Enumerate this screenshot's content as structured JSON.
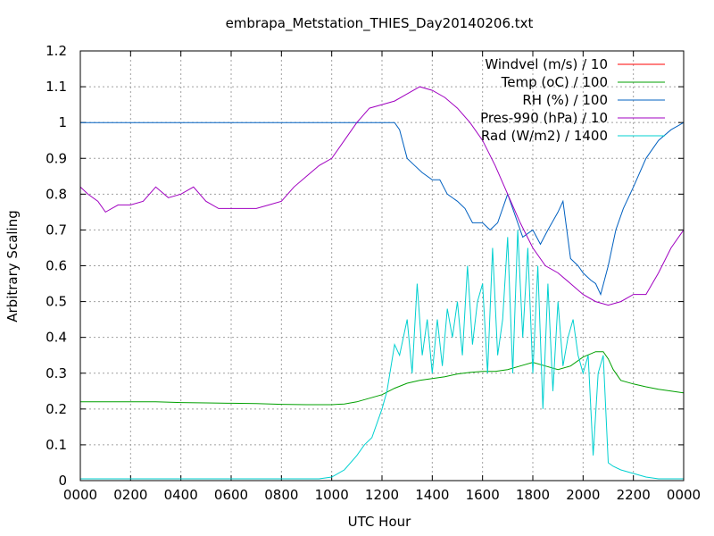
{
  "chart_data": {
    "type": "line",
    "title": "embrapa_Metstation_THIES_Day20140206.txt",
    "xlabel": "UTC Hour",
    "ylabel": "Arbitrary Scaling",
    "xlim": [
      0,
      24
    ],
    "ylim": [
      0,
      1.2
    ],
    "grid": true,
    "legend_position": "top-right",
    "x_tick_values": [
      0,
      2,
      4,
      6,
      8,
      10,
      12,
      14,
      16,
      18,
      20,
      22,
      24
    ],
    "x_tick_labels": [
      "0000",
      "0200",
      "0400",
      "0600",
      "0800",
      "1000",
      "1200",
      "1400",
      "1600",
      "1800",
      "2000",
      "2200",
      "0000"
    ],
    "y_tick_values": [
      0,
      0.1,
      0.2,
      0.3,
      0.4,
      0.5,
      0.6,
      0.7,
      0.8,
      0.9,
      1.0,
      1.1,
      1.2
    ],
    "y_tick_labels": [
      "0",
      "0.1",
      "0.2",
      "0.3",
      "0.4",
      "0.5",
      "0.6",
      "0.7",
      "0.8",
      "0.9",
      "1",
      "1.1",
      "1.2"
    ],
    "series": [
      {
        "name": "Windvel (m/s) / 10",
        "color": "#ff0000",
        "x": [],
        "values": []
      },
      {
        "name": "Temp (oC) / 100",
        "color": "#00a000",
        "x": [
          0,
          1,
          2,
          3,
          4,
          5,
          6,
          7,
          8,
          9,
          10,
          10.5,
          11,
          11.5,
          12,
          12.5,
          13,
          13.5,
          14,
          14.5,
          15,
          15.5,
          16,
          16.5,
          17,
          17.5,
          18,
          18.5,
          19,
          19.5,
          20,
          20.5,
          20.8,
          21,
          21.2,
          21.5,
          22,
          22.5,
          23,
          23.5,
          24
        ],
        "values": [
          0.22,
          0.22,
          0.22,
          0.22,
          0.218,
          0.217,
          0.216,
          0.215,
          0.213,
          0.212,
          0.212,
          0.214,
          0.22,
          0.23,
          0.24,
          0.258,
          0.272,
          0.28,
          0.285,
          0.29,
          0.298,
          0.302,
          0.305,
          0.305,
          0.31,
          0.32,
          0.33,
          0.32,
          0.31,
          0.32,
          0.345,
          0.36,
          0.36,
          0.34,
          0.31,
          0.28,
          0.27,
          0.262,
          0.255,
          0.25,
          0.245
        ]
      },
      {
        "name": "RH (%) / 100",
        "color": "#0060c0",
        "x": [
          0,
          12.5,
          12.7,
          13,
          13.3,
          13.6,
          14,
          14.3,
          14.6,
          15,
          15.3,
          15.6,
          16,
          16.3,
          16.6,
          17,
          17.3,
          17.6,
          18,
          18.3,
          18.6,
          19,
          19.2,
          19.5,
          19.8,
          20,
          20.3,
          20.5,
          20.7,
          21,
          21.3,
          21.6,
          22,
          22.5,
          23,
          23.5,
          24
        ],
        "values": [
          1.0,
          1.0,
          0.98,
          0.9,
          0.88,
          0.86,
          0.84,
          0.84,
          0.8,
          0.78,
          0.76,
          0.72,
          0.72,
          0.7,
          0.72,
          0.8,
          0.74,
          0.68,
          0.7,
          0.66,
          0.7,
          0.75,
          0.78,
          0.62,
          0.6,
          0.58,
          0.56,
          0.55,
          0.52,
          0.6,
          0.7,
          0.76,
          0.82,
          0.9,
          0.95,
          0.98,
          1.0
        ]
      },
      {
        "name": "Pres-990 (hPa) / 10",
        "color": "#a000c0",
        "x": [
          0,
          0.3,
          0.7,
          1,
          1.5,
          2,
          2.5,
          3,
          3.5,
          4,
          4.5,
          5,
          5.5,
          6,
          6.5,
          7,
          7.5,
          8,
          8.5,
          9,
          9.5,
          10,
          10.5,
          11,
          11.5,
          12,
          12.5,
          13,
          13.5,
          14,
          14.5,
          15,
          15.5,
          16,
          16.5,
          17,
          17.5,
          18,
          18.5,
          19,
          19.5,
          20,
          20.5,
          21,
          21.5,
          22,
          22.5,
          23,
          23.5,
          24
        ],
        "values": [
          0.82,
          0.8,
          0.78,
          0.75,
          0.77,
          0.77,
          0.78,
          0.82,
          0.79,
          0.8,
          0.82,
          0.78,
          0.76,
          0.76,
          0.76,
          0.76,
          0.77,
          0.78,
          0.82,
          0.85,
          0.88,
          0.9,
          0.95,
          1.0,
          1.04,
          1.05,
          1.06,
          1.08,
          1.1,
          1.09,
          1.07,
          1.04,
          1.0,
          0.95,
          0.88,
          0.8,
          0.72,
          0.65,
          0.6,
          0.58,
          0.55,
          0.52,
          0.5,
          0.49,
          0.5,
          0.52,
          0.52,
          0.58,
          0.65,
          0.7
        ]
      },
      {
        "name": "Rad (W/m2) / 1400",
        "color": "#00d0d0",
        "x": [
          0,
          9.5,
          10,
          10.5,
          11,
          11.3,
          11.6,
          12,
          12.2,
          12.5,
          12.7,
          13,
          13.2,
          13.4,
          13.6,
          13.8,
          14,
          14.2,
          14.4,
          14.6,
          14.8,
          15,
          15.2,
          15.4,
          15.6,
          15.8,
          16,
          16.2,
          16.4,
          16.6,
          16.8,
          17,
          17.2,
          17.4,
          17.6,
          17.8,
          18,
          18.2,
          18.4,
          18.6,
          18.8,
          19,
          19.2,
          19.4,
          19.6,
          19.8,
          20,
          20.2,
          20.4,
          20.6,
          20.8,
          21,
          21.2,
          21.5,
          22,
          22.5,
          23,
          24
        ],
        "values": [
          0.005,
          0.005,
          0.01,
          0.03,
          0.07,
          0.1,
          0.12,
          0.2,
          0.25,
          0.38,
          0.35,
          0.45,
          0.3,
          0.55,
          0.35,
          0.45,
          0.3,
          0.45,
          0.32,
          0.48,
          0.4,
          0.5,
          0.35,
          0.6,
          0.38,
          0.5,
          0.55,
          0.3,
          0.65,
          0.35,
          0.45,
          0.68,
          0.3,
          0.7,
          0.4,
          0.65,
          0.3,
          0.6,
          0.2,
          0.55,
          0.25,
          0.5,
          0.32,
          0.4,
          0.45,
          0.35,
          0.3,
          0.35,
          0.07,
          0.3,
          0.35,
          0.05,
          0.04,
          0.03,
          0.02,
          0.01,
          0.005,
          0.005
        ]
      }
    ]
  }
}
